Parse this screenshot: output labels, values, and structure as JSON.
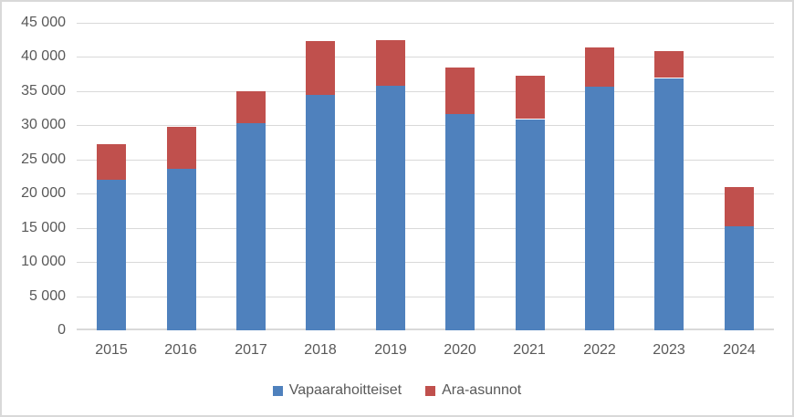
{
  "chart_data": {
    "type": "bar",
    "stacked": true,
    "title": "",
    "xlabel": "",
    "ylabel": "",
    "grid": true,
    "legend_position": "bottom",
    "categories": [
      "2015",
      "2016",
      "2017",
      "2018",
      "2019",
      "2020",
      "2021",
      "2022",
      "2023",
      "2024"
    ],
    "series": [
      {
        "name": "Vapaarahoitteiset",
        "color": "#4F81BD",
        "values": [
          22100,
          23600,
          30300,
          34400,
          35800,
          31700,
          30900,
          35700,
          36900,
          15200
        ]
      },
      {
        "name": "Ara-asunnot",
        "color": "#C0504D",
        "values": [
          5200,
          6200,
          4700,
          7900,
          6700,
          6800,
          6300,
          5700,
          3900,
          5700
        ]
      }
    ],
    "totals": [
      27300,
      29800,
      35000,
      42300,
      42500,
      38500,
      37200,
      41400,
      40800,
      20900
    ],
    "ylim": [
      0,
      45000
    ],
    "ytick_step": 5000,
    "ytick_labels": [
      "0",
      "5 000",
      "10 000",
      "15 000",
      "20 000",
      "25 000",
      "30 000",
      "35 000",
      "40 000",
      "45 000"
    ]
  },
  "colors": {
    "grid": "#d9d9d9",
    "axis": "#d9d9d9",
    "border": "#d9d9d9",
    "text": "#595959",
    "background": "#ffffff"
  }
}
